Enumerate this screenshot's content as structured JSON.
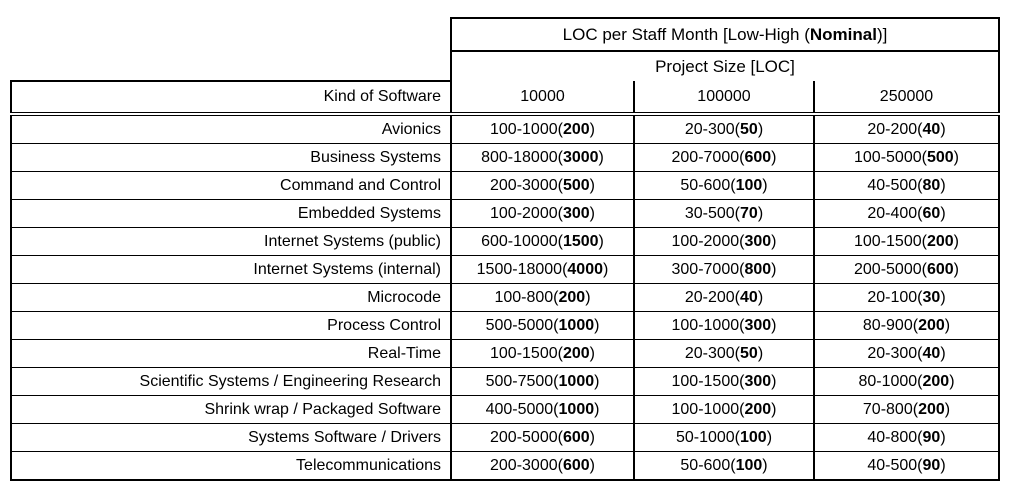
{
  "header": {
    "title_prefix": "LOC per Staff Month [Low-High (",
    "title_bold": "Nominal",
    "title_suffix": ")]",
    "subtitle": "Project Size [LOC]",
    "kind_header": "Kind of Software",
    "sizes": [
      "10000",
      "100000",
      "250000"
    ]
  },
  "rows": [
    {
      "kind": "Avionics",
      "cols": [
        {
          "range": "100-1000",
          "nominal": "200"
        },
        {
          "range": "20-300",
          "nominal": "50"
        },
        {
          "range": "20-200",
          "nominal": "40"
        }
      ]
    },
    {
      "kind": "Business Systems",
      "cols": [
        {
          "range": "800-18000",
          "nominal": "3000"
        },
        {
          "range": "200-7000",
          "nominal": "600"
        },
        {
          "range": "100-5000",
          "nominal": "500"
        }
      ]
    },
    {
      "kind": "Command and Control",
      "cols": [
        {
          "range": "200-3000",
          "nominal": "500"
        },
        {
          "range": "50-600",
          "nominal": "100"
        },
        {
          "range": "40-500",
          "nominal": "80"
        }
      ]
    },
    {
      "kind": "Embedded Systems",
      "cols": [
        {
          "range": "100-2000",
          "nominal": "300"
        },
        {
          "range": "30-500",
          "nominal": "70"
        },
        {
          "range": "20-400",
          "nominal": "60"
        }
      ]
    },
    {
      "kind": "Internet Systems (public)",
      "cols": [
        {
          "range": "600-10000",
          "nominal": "1500"
        },
        {
          "range": "100-2000",
          "nominal": "300"
        },
        {
          "range": "100-1500",
          "nominal": "200"
        }
      ]
    },
    {
      "kind": "Internet Systems (internal)",
      "cols": [
        {
          "range": "1500-18000",
          "nominal": "4000"
        },
        {
          "range": "300-7000",
          "nominal": "800"
        },
        {
          "range": "200-5000",
          "nominal": "600"
        }
      ]
    },
    {
      "kind": "Microcode",
      "cols": [
        {
          "range": "100-800",
          "nominal": "200"
        },
        {
          "range": "20-200",
          "nominal": "40"
        },
        {
          "range": "20-100",
          "nominal": "30"
        }
      ]
    },
    {
      "kind": "Process Control",
      "cols": [
        {
          "range": "500-5000",
          "nominal": "1000"
        },
        {
          "range": "100-1000",
          "nominal": "300"
        },
        {
          "range": "80-900",
          "nominal": "200"
        }
      ]
    },
    {
      "kind": "Real-Time",
      "cols": [
        {
          "range": "100-1500",
          "nominal": "200"
        },
        {
          "range": "20-300",
          "nominal": "50"
        },
        {
          "range": "20-300",
          "nominal": "40"
        }
      ]
    },
    {
      "kind": "Scientific Systems / Engineering Research",
      "cols": [
        {
          "range": "500-7500",
          "nominal": "1000"
        },
        {
          "range": "100-1500",
          "nominal": "300"
        },
        {
          "range": "80-1000",
          "nominal": "200"
        }
      ]
    },
    {
      "kind": "Shrink wrap / Packaged Software",
      "cols": [
        {
          "range": "400-5000",
          "nominal": "1000"
        },
        {
          "range": "100-1000",
          "nominal": "200"
        },
        {
          "range": "70-800",
          "nominal": "200"
        }
      ]
    },
    {
      "kind": "Systems Software / Drivers",
      "cols": [
        {
          "range": "200-5000",
          "nominal": "600"
        },
        {
          "range": "50-1000",
          "nominal": "100"
        },
        {
          "range": "40-800",
          "nominal": "90"
        }
      ]
    },
    {
      "kind": "Telecommunications",
      "cols": [
        {
          "range": "200-3000",
          "nominal": "600"
        },
        {
          "range": "50-600",
          "nominal": "100"
        },
        {
          "range": "40-500",
          "nominal": "90"
        }
      ]
    }
  ],
  "colors": {
    "border": "#000000",
    "text": "#000000",
    "background": "#ffffff"
  }
}
